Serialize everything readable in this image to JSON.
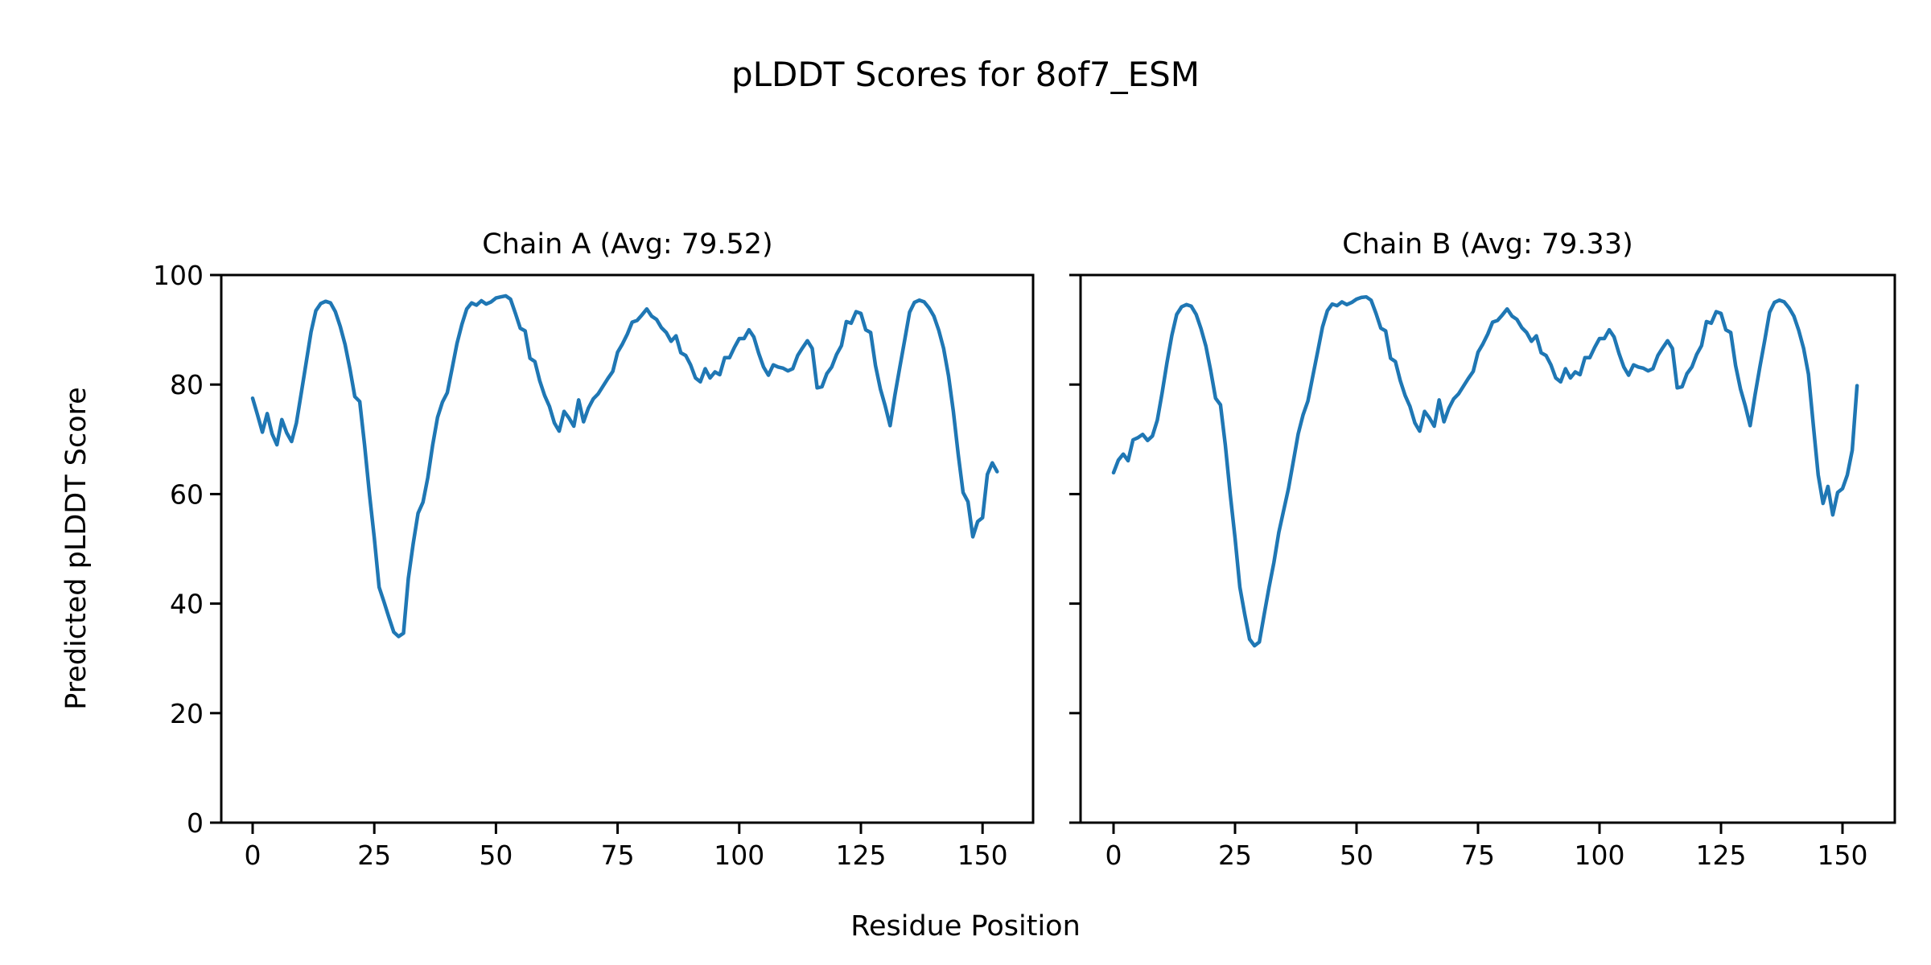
{
  "figure": {
    "suptitle": "pLDDT Scores for 8of7_ESM",
    "xlabel": "Residue Position",
    "ylabel": "Predicted pLDDT Score"
  },
  "chart_data": [
    {
      "type": "line",
      "title": "Chain A (Avg: 79.52)",
      "series_name": "Chain A pLDDT",
      "avg": 79.52,
      "line_color": "#1f77b4",
      "x_description": "residue index 0..153, one point per residue",
      "x_ticks": [
        0,
        25,
        50,
        75,
        100,
        125,
        150
      ],
      "y_ticks": [
        0,
        20,
        40,
        60,
        80,
        100
      ],
      "ylim": [
        0,
        100
      ],
      "grid": false,
      "legend": "none",
      "values": [
        77.5,
        74.5,
        71.3,
        74.7,
        71.0,
        69.0,
        73.6,
        71.2,
        69.6,
        73.0,
        78.5,
        84.0,
        89.6,
        93.5,
        94.8,
        95.2,
        94.9,
        93.3,
        90.6,
        87.3,
        82.8,
        77.8,
        76.9,
        69.0,
        60.0,
        52.0,
        43.0,
        40.3,
        37.5,
        34.8,
        34.0,
        34.6,
        44.6,
        51.0,
        56.5,
        58.5,
        63.0,
        69.0,
        74.0,
        76.8,
        78.5,
        83.0,
        87.5,
        91.0,
        93.8,
        94.9,
        94.5,
        95.3,
        94.7,
        95.1,
        95.8,
        96.0,
        96.2,
        95.6,
        93.0,
        90.3,
        89.8,
        84.8,
        84.2,
        80.7,
        78.0,
        76.0,
        73.0,
        71.5,
        75.1,
        73.9,
        72.4,
        77.2,
        73.2,
        75.7,
        77.4,
        78.3,
        79.7,
        81.1,
        82.4,
        85.9,
        87.4,
        89.2,
        91.4,
        91.7,
        92.7,
        93.8,
        92.5,
        91.9,
        90.4,
        89.5,
        87.9,
        88.9,
        85.8,
        85.3,
        83.6,
        81.2,
        80.5,
        82.9,
        81.2,
        82.3,
        81.8,
        84.9,
        84.9,
        86.8,
        88.4,
        88.4,
        90.0,
        88.7,
        85.7,
        83.2,
        81.7,
        83.6,
        83.2,
        83.0,
        82.5,
        82.9,
        85.3,
        86.7,
        88.0,
        86.6,
        79.4,
        79.6,
        82.0,
        83.2,
        85.5,
        87.1,
        91.5,
        91.2,
        93.3,
        93.0,
        90.0,
        89.5,
        83.5,
        79.2,
        76.1,
        72.5,
        78.1,
        83.2,
        88.1,
        93.2,
        95.0,
        95.4,
        95.1,
        94.0,
        92.5,
        89.9,
        86.6,
        81.6,
        75.1,
        67.2,
        60.3,
        58.6,
        52.2,
        55.0,
        55.7,
        63.6,
        65.7,
        64.1
      ]
    },
    {
      "type": "line",
      "title": "Chain B (Avg: 79.33)",
      "series_name": "Chain B pLDDT",
      "avg": 79.33,
      "line_color": "#1f77b4",
      "x_description": "residue index 0..153, one point per residue",
      "x_ticks": [
        0,
        25,
        50,
        75,
        100,
        125,
        150
      ],
      "y_ticks": [
        0,
        20,
        40,
        60,
        80,
        100
      ],
      "ylim": [
        0,
        100
      ],
      "grid": false,
      "legend": "none",
      "values": [
        63.9,
        66.2,
        67.3,
        66.1,
        69.9,
        70.3,
        70.9,
        69.8,
        70.6,
        73.5,
        78.5,
        84.0,
        89.0,
        92.8,
        94.2,
        94.6,
        94.3,
        92.8,
        90.2,
        87.0,
        82.5,
        77.5,
        76.3,
        69.0,
        60.0,
        52.0,
        43.0,
        38.0,
        33.5,
        32.3,
        33.0,
        38.0,
        43.0,
        47.5,
        53.0,
        57.0,
        61.0,
        66.0,
        71.0,
        74.5,
        77.0,
        81.5,
        86.0,
        90.5,
        93.5,
        94.7,
        94.4,
        95.1,
        94.6,
        95.0,
        95.6,
        95.9,
        96.0,
        95.4,
        93.0,
        90.3,
        89.8,
        84.8,
        84.2,
        80.7,
        78.0,
        76.0,
        73.0,
        71.5,
        75.1,
        73.9,
        72.4,
        77.2,
        73.2,
        75.7,
        77.4,
        78.3,
        79.7,
        81.1,
        82.4,
        85.9,
        87.4,
        89.2,
        91.4,
        91.7,
        92.7,
        93.8,
        92.5,
        91.9,
        90.4,
        89.5,
        87.9,
        88.9,
        85.8,
        85.3,
        83.6,
        81.2,
        80.5,
        82.9,
        81.2,
        82.3,
        81.8,
        84.9,
        84.9,
        86.8,
        88.4,
        88.4,
        90.0,
        88.7,
        85.7,
        83.2,
        81.7,
        83.6,
        83.2,
        83.0,
        82.5,
        82.9,
        85.3,
        86.7,
        88.0,
        86.6,
        79.4,
        79.6,
        82.0,
        83.2,
        85.5,
        87.1,
        91.5,
        91.2,
        93.3,
        93.0,
        90.0,
        89.5,
        83.5,
        79.2,
        76.1,
        72.5,
        78.1,
        83.2,
        88.1,
        93.2,
        95.0,
        95.4,
        95.1,
        94.0,
        92.5,
        89.9,
        86.6,
        81.9,
        72.5,
        63.5,
        58.3,
        61.4,
        56.2,
        60.3,
        61.0,
        63.5,
        68.0,
        79.8
      ]
    }
  ]
}
